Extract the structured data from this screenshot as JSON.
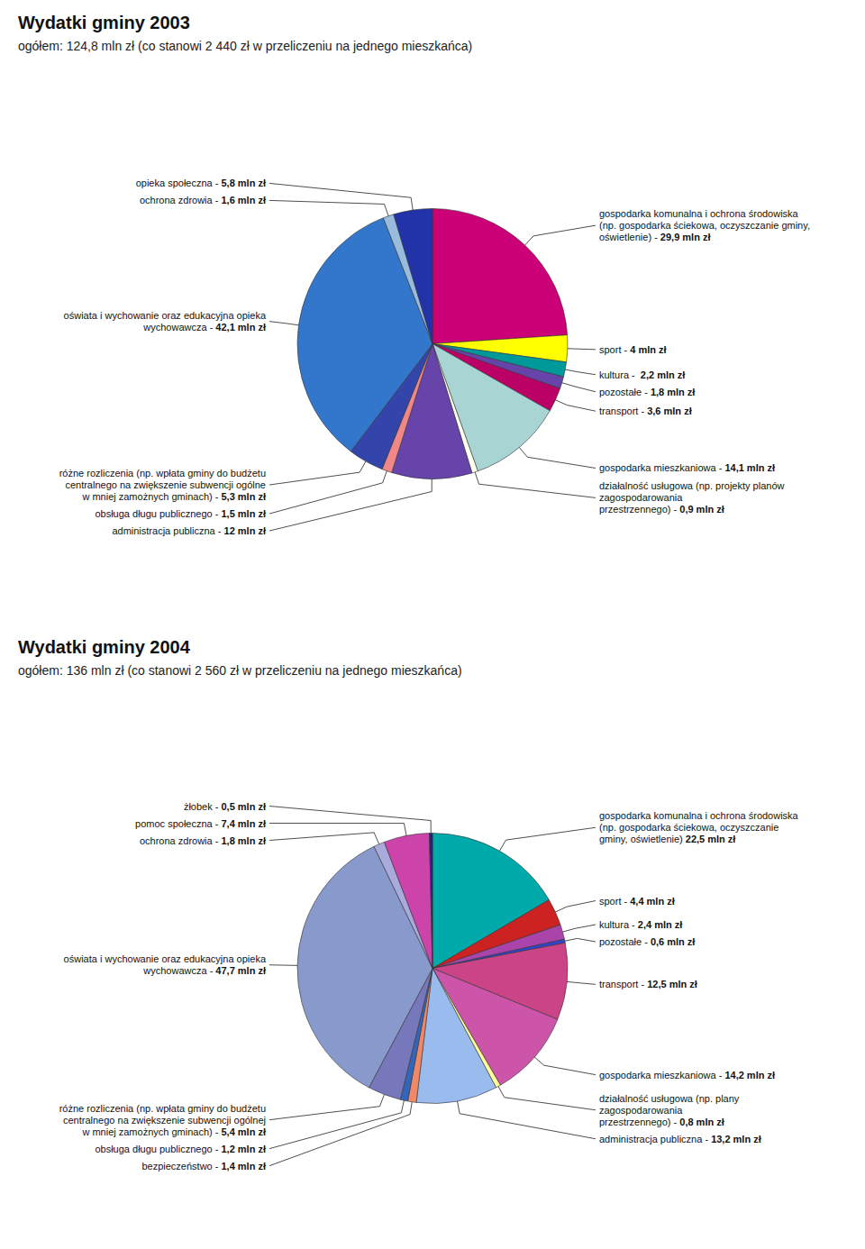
{
  "chart_data": [
    {
      "type": "pie",
      "title": "Wydatki gminy 2003",
      "subtitle": "ogółem: 124,8 mln zł (co stanowi 2 440 zł w przeliczeniu na jednego mieszkańca)",
      "categories": [
        "gospodarka komunalna i ochrona środowiska\n(np. gospodarka ściekowa, oczyszczanie gminy,\noświetlenie) - ",
        "sport - ",
        "kultura -  ",
        "pozostałe - ",
        "transport - ",
        "gospodarka mieszkaniowa - ",
        "działalność usługowa (np. projekty planów\nzagospodarowania\nprzestrzennego) - ",
        "administracja publiczna - ",
        "obsługa długu publicznego - ",
        "różne rozliczenia (np. wpłata gminy do budżetu\ncentralnego na zwiększenie subwencji ogólne\nw mniej zamożnych gminach) - ",
        "oświata i wychowanie oraz edukacyjna opieka\nwychowawcza - ",
        "ochrona zdrowia - ",
        "opieka społeczna - "
      ],
      "values": [
        29.9,
        4.0,
        2.2,
        1.8,
        3.6,
        14.1,
        0.9,
        12.0,
        1.5,
        5.3,
        42.1,
        1.6,
        5.8
      ],
      "value_labels": [
        "29,9 mln zł",
        "4 mln zł",
        "2,2 mln zł",
        "1,8 mln zł",
        "3,6 mln zł",
        "14,1 mln zł",
        "0,9 mln zł",
        "12 mln zł",
        "1,5 mln zł",
        "5,3 mln zł",
        "42,1 mln zł",
        "1,6 mln zł",
        "5,8 mln zł"
      ],
      "colors": [
        "#CC0077",
        "#FFFF00",
        "#009999",
        "#6644AA",
        "#BB0066",
        "#A8D4D4",
        "#FFFFF0",
        "#6644AA",
        "#F08888",
        "#3344AA",
        "#3377CC",
        "#99BBDD",
        "#2233AA"
      ],
      "data_labels": true
    },
    {
      "type": "pie",
      "title": "Wydatki gminy 2004",
      "subtitle": "ogółem: 136 mln zł (co stanowi 2 560 zł w przeliczeniu na jednego mieszkańca)",
      "categories": [
        "gospodarka komunalna i ochrona środowiska\n(np. gospodarka ściekowa, oczyszczanie\ngminy, oświetlenie) ",
        "sport - ",
        "kultura - ",
        "pozostałe - ",
        "transport - ",
        "gospodarka mieszkaniowa - ",
        "działalność usługowa (np. plany\nzagospodarowania\nprzestrzennego) - ",
        "administracja publiczna - ",
        "bezpieczeństwo - ",
        "obsługa długu publicznego - ",
        "różne rozliczenia (np. wpłata gminy do budżetu\ncentralnego na zwiększenie subwencji ogólnej\nw mniej zamożnych gminach) - ",
        "oświata i wychowanie oraz edukacyjna opieka\nwychowawcza - ",
        "ochrona zdrowia - ",
        "pomoc społeczna - ",
        "żłobek - "
      ],
      "values": [
        22.5,
        4.4,
        2.4,
        0.6,
        12.5,
        14.2,
        0.8,
        13.2,
        1.4,
        1.2,
        5.4,
        47.7,
        1.8,
        7.4,
        0.5
      ],
      "value_labels": [
        "22,5 mln zł",
        "4,4 mln zł",
        "2,4 mln zł",
        "0,6 mln zł",
        "12,5 mln zł",
        "14,2 mln zł",
        "0,8 mln zł",
        "13,2 mln zł",
        "1,4 mln zł",
        "1,2 mln zł",
        "5,4 mln zł",
        "47,7 mln zł",
        "1,8 mln zł",
        "7,4 mln zł",
        "0,5 mln zł"
      ],
      "colors": [
        "#00AAAA",
        "#CC2222",
        "#AA44AA",
        "#3344CC",
        "#CC4488",
        "#CC55AA",
        "#FFFF99",
        "#99BBEE",
        "#EE8866",
        "#3366BB",
        "#7777BB",
        "#8899CC",
        "#AAAADD",
        "#CC44AA",
        "#222288"
      ],
      "data_labels": true
    }
  ]
}
